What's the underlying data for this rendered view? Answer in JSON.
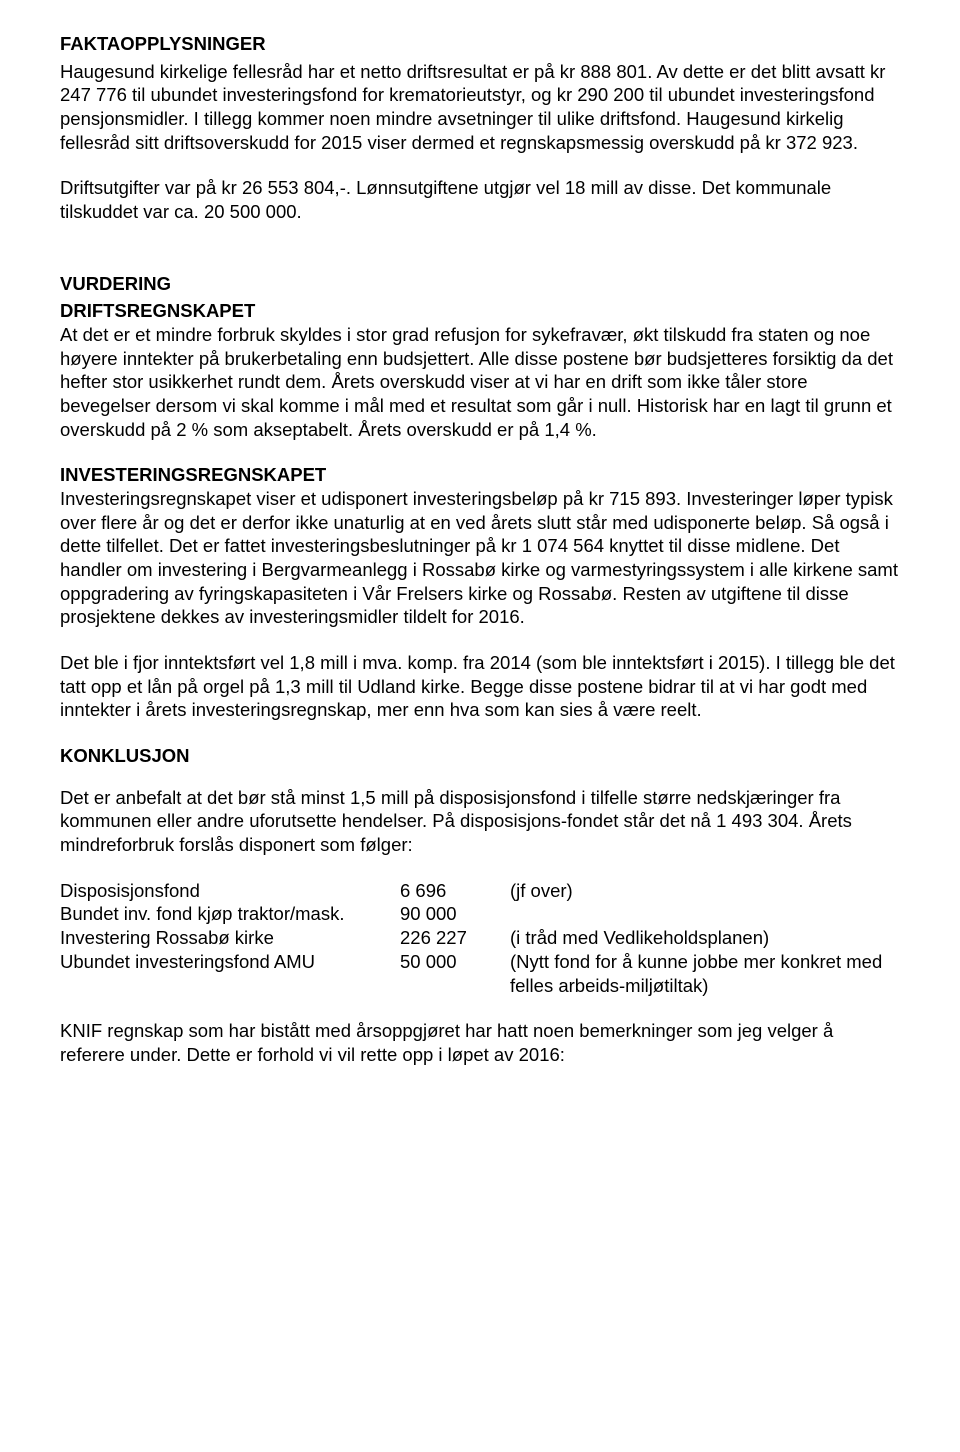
{
  "sections": {
    "fakta": {
      "title": "FAKTAOPPLYSNINGER",
      "p1": "Haugesund kirkelige fellesråd har et netto driftsresultat er på kr 888 801. Av dette er det blitt avsatt kr 247 776 til ubundet investeringsfond for krematorieutstyr, og kr 290 200 til ubundet investeringsfond pensjonsmidler. I tillegg kommer noen mindre avsetninger til ulike driftsfond. Haugesund kirkelig fellesråd sitt driftsoverskudd for 2015 viser dermed et regnskapsmessig overskudd på kr 372 923.",
      "p2": "Driftsutgifter var på kr 26 553 804,-. Lønnsutgiftene utgjør vel 18 mill av disse. Det kommunale tilskuddet var ca. 20 500 000."
    },
    "vurdering": {
      "title": "VURDERING",
      "drift_heading": "DRIFTSREGNSKAPET",
      "drift_p": "At det er et mindre forbruk skyldes i stor grad refusjon for sykefravær, økt tilskudd fra staten og noe høyere inntekter på brukerbetaling enn budsjettert. Alle disse postene bør budsjetteres forsiktig da det hefter stor usikkerhet rundt dem. Årets overskudd viser at vi har en drift som ikke tåler store bevegelser dersom vi skal komme i mål med et resultat som går i null. Historisk har en lagt til grunn et overskudd på 2 % som akseptabelt. Årets overskudd er på 1,4 %.",
      "inv_heading": "INVESTERINGSREGNSKAPET",
      "inv_p1": "Investeringsregnskapet viser et udisponert investeringsbeløp på kr 715 893. Investeringer løper typisk over flere år og det er derfor ikke unaturlig at en ved årets slutt står med udisponerte beløp. Så også i dette tilfellet. Det er fattet investeringsbeslutninger på kr 1 074 564 knyttet til disse midlene. Det handler om investering i Bergvarmeanlegg i Rossabø kirke og varmestyringssystem i alle kirkene samt oppgradering av fyringskapasiteten i Vår Frelsers kirke og Rossabø. Resten av utgiftene til disse prosjektene dekkes av investeringsmidler tildelt for 2016.",
      "inv_p2": "Det ble i fjor inntektsført vel 1,8 mill i mva. komp. fra 2014 (som ble inntektsført i 2015). I tillegg ble det tatt opp et lån på orgel på 1,3 mill til Udland kirke. Begge disse postene bidrar til at vi har godt med inntekter i årets investeringsregnskap, mer enn hva som kan sies å være reelt."
    },
    "konklusjon": {
      "title": "KONKLUSJON",
      "p1": "Det er anbefalt at det bør stå minst 1,5 mill på disposisjonsfond i tilfelle større nedskjæringer fra kommunen eller andre uforutsette hendelser. På disposisjons-fondet står det nå 1 493 304. Årets mindreforbruk forslås disponert som følger:",
      "allocations": [
        {
          "label": "Disposisjonsfond",
          "amount": "6 696",
          "note": "(jf over)"
        },
        {
          "label": "Bundet inv. fond kjøp traktor/mask.",
          "amount": "90 000",
          "note": ""
        },
        {
          "label": "Investering Rossabø kirke",
          "amount": "226 227",
          "note": "(i tråd med Vedlikeholdsplanen)"
        },
        {
          "label": "Ubundet investeringsfond AMU",
          "amount": "50 000",
          "note": "(Nytt fond for å kunne jobbe mer konkret med felles arbeids-miljøtiltak)"
        }
      ],
      "p2": "KNIF regnskap som har bistått med årsoppgjøret har hatt noen bemerkninger som jeg velger å referere under. Dette er forhold vi vil rette opp i løpet av 2016:"
    }
  }
}
